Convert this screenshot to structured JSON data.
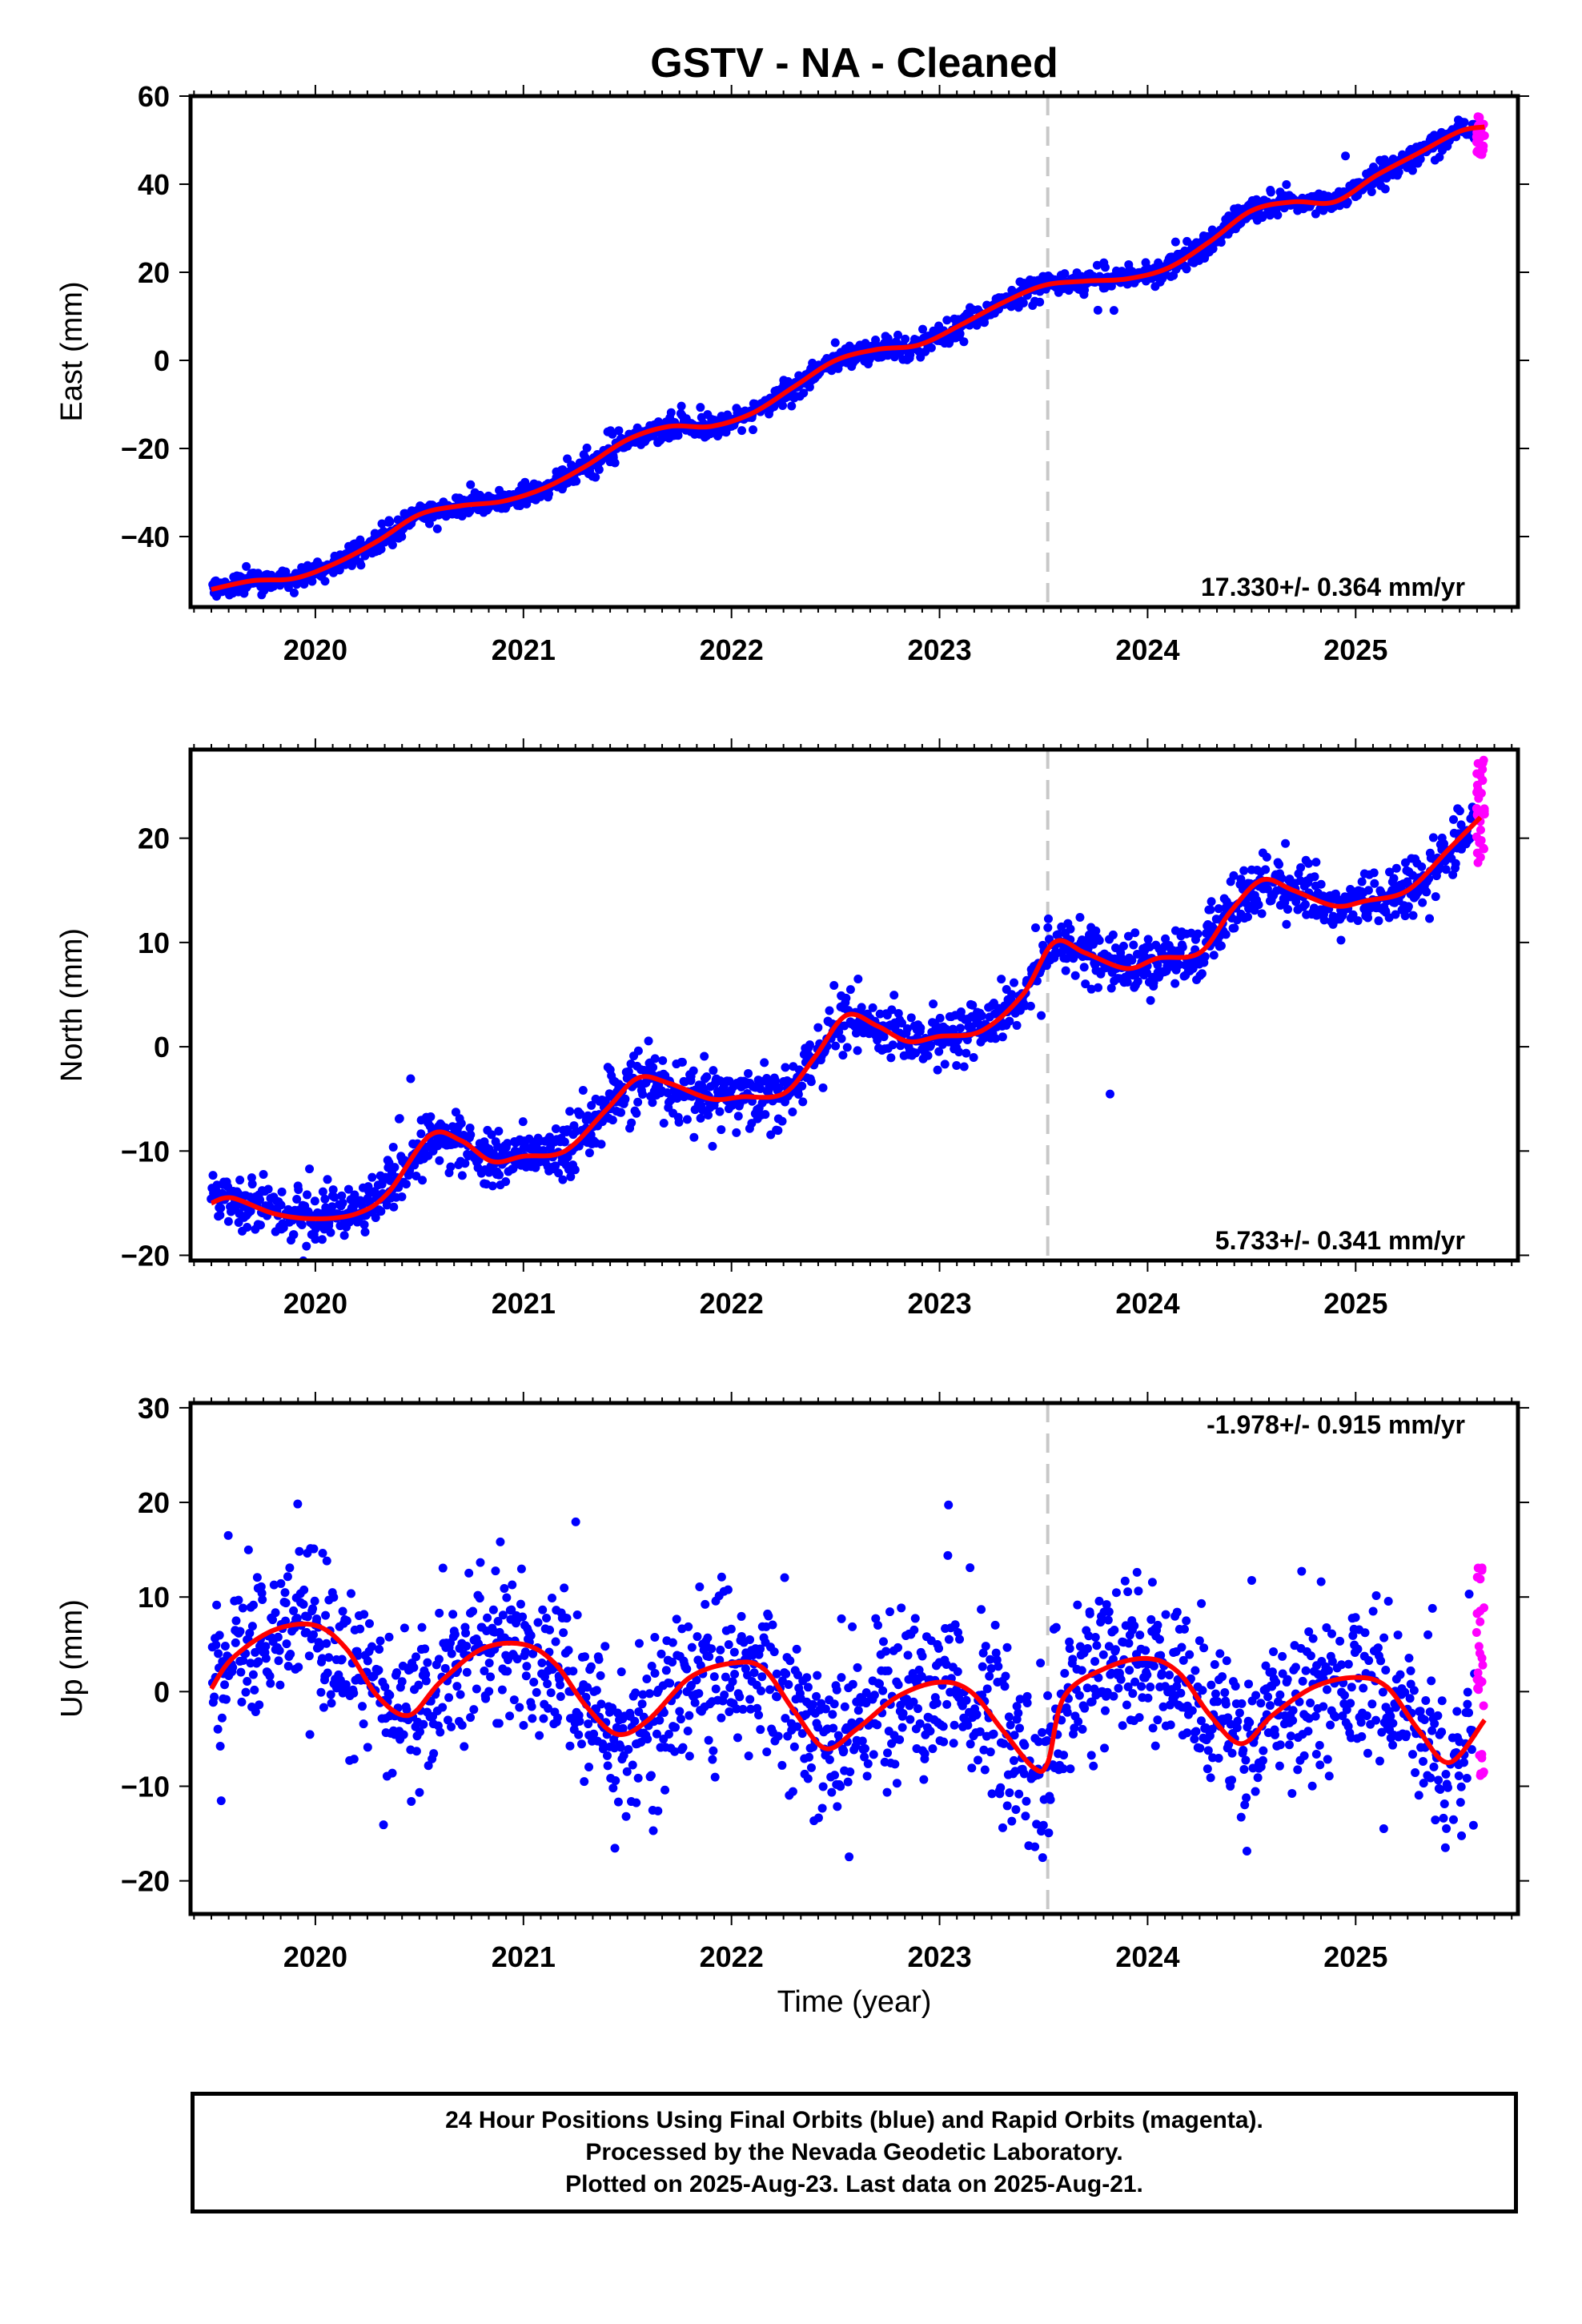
{
  "figure": {
    "title": "GSTV  - NA - Cleaned",
    "xlabel": "Time (year)",
    "x_ticks": [
      "2020",
      "2021",
      "2022",
      "2023",
      "2024",
      "2025"
    ],
    "colors": {
      "final_orbits": "#0000ff",
      "rapid_orbits": "#ff00ff",
      "model": "#ff0000",
      "marker_line": "#c8c8c8"
    }
  },
  "chart_data": [
    {
      "type": "scatter",
      "ylabel": "East (mm)",
      "xlim": [
        2019.4,
        2025.78
      ],
      "ylim": [
        -56,
        60
      ],
      "y_ticks": [
        -40,
        -20,
        0,
        20,
        40,
        60
      ],
      "rate_label": "17.330+/- 0.364 mm/yr",
      "rate_position": "bottom-right",
      "vertical_marker_x": 2023.52,
      "final_orbits_end": 2025.57,
      "model_curve": {
        "x": [
          2019.5,
          2019.7,
          2019.9,
          2020.1,
          2020.3,
          2020.5,
          2020.7,
          2020.9,
          2021.1,
          2021.3,
          2021.5,
          2021.7,
          2021.9,
          2022.1,
          2022.3,
          2022.5,
          2022.7,
          2022.9,
          2023.1,
          2023.3,
          2023.5,
          2023.7,
          2023.9,
          2024.1,
          2024.3,
          2024.5,
          2024.7,
          2024.9,
          2025.1,
          2025.3,
          2025.5,
          2025.62
        ],
        "y": [
          -52,
          -50,
          -49.5,
          -46,
          -41,
          -35,
          -33,
          -32,
          -29,
          -24,
          -18,
          -15,
          -15,
          -12,
          -6,
          0,
          2.5,
          3.5,
          8,
          13,
          17,
          18,
          18.5,
          21,
          27,
          34,
          36,
          36,
          42,
          47,
          52,
          53
        ]
      },
      "rapid_orbits": {
        "x": [
          2025.58,
          2025.62
        ],
        "y_range": [
          46,
          56
        ]
      }
    },
    {
      "type": "scatter",
      "ylabel": "North (mm)",
      "xlim": [
        2019.4,
        2025.78
      ],
      "ylim": [
        -20.5,
        28.5
      ],
      "y_ticks": [
        -20,
        -10,
        0,
        10,
        20
      ],
      "rate_label": "5.733+/- 0.341 mm/yr",
      "rate_position": "bottom-right",
      "vertical_marker_x": 2023.52,
      "final_orbits_end": 2025.57,
      "model_curve": {
        "x": [
          2019.5,
          2019.6,
          2019.8,
          2020.0,
          2020.2,
          2020.35,
          2020.55,
          2020.7,
          2020.85,
          2021.0,
          2021.2,
          2021.4,
          2021.55,
          2021.7,
          2021.9,
          2022.05,
          2022.25,
          2022.4,
          2022.55,
          2022.7,
          2022.85,
          2023.0,
          2023.2,
          2023.4,
          2023.55,
          2023.7,
          2023.9,
          2024.05,
          2024.25,
          2024.4,
          2024.55,
          2024.7,
          2024.9,
          2025.05,
          2025.25,
          2025.45,
          2025.6
        ],
        "y": [
          -15,
          -14.5,
          -16,
          -16.5,
          -16,
          -14,
          -8.5,
          -9,
          -11,
          -10.5,
          -10,
          -6,
          -3,
          -3.5,
          -5,
          -4.8,
          -4.5,
          -1,
          3,
          2,
          0.5,
          1,
          1.5,
          5,
          10,
          9,
          7.5,
          8.5,
          9,
          13,
          16,
          15,
          13.5,
          14,
          15,
          19,
          22
        ]
      },
      "rapid_orbits": {
        "x": [
          2025.58,
          2025.62
        ],
        "y_range": [
          17.5,
          27.5
        ]
      }
    },
    {
      "type": "scatter",
      "ylabel": "Up (mm)",
      "xlim": [
        2019.4,
        2025.78
      ],
      "ylim": [
        -23.5,
        30.5
      ],
      "y_ticks": [
        -20,
        -10,
        0,
        10,
        20,
        30
      ],
      "rate_label": "-1.978+/- 0.915 mm/yr",
      "rate_position": "top-right",
      "vertical_marker_x": 2023.52,
      "final_orbits_end": 2025.57,
      "model_curve": {
        "x": [
          2019.5,
          2019.6,
          2019.8,
          2020.0,
          2020.15,
          2020.3,
          2020.45,
          2020.6,
          2020.8,
          2021.0,
          2021.15,
          2021.3,
          2021.45,
          2021.6,
          2021.8,
          2022.0,
          2022.15,
          2022.3,
          2022.45,
          2022.6,
          2022.8,
          2023.0,
          2023.15,
          2023.3,
          2023.45,
          2023.52,
          2023.6,
          2023.8,
          2024.0,
          2024.15,
          2024.3,
          2024.45,
          2024.6,
          2024.8,
          2025.0,
          2025.15,
          2025.3,
          2025.45,
          2025.62
        ],
        "y": [
          0.3,
          3.5,
          6.5,
          7,
          4.5,
          -0.5,
          -2.5,
          1,
          4.5,
          5,
          3,
          -1.5,
          -4.5,
          -3,
          1.5,
          3,
          2.5,
          -2,
          -6,
          -4,
          -0.5,
          1,
          0,
          -4,
          -8,
          -7.5,
          -0.5,
          2.5,
          3.5,
          2,
          -2.5,
          -5.5,
          -2.5,
          0.5,
          1.5,
          0.5,
          -4,
          -7.5,
          -3
        ]
      },
      "rapid_orbits": {
        "x": [
          2025.58,
          2025.62
        ],
        "y_range": [
          -9.5,
          14
        ]
      }
    }
  ],
  "footer": {
    "line1": "24 Hour Positions Using Final Orbits (blue) and Rapid Orbits (magenta).",
    "line2": "Processed by the Nevada Geodetic Laboratory.",
    "line3": "Plotted on 2025-Aug-23. Last data on 2025-Aug-21."
  }
}
